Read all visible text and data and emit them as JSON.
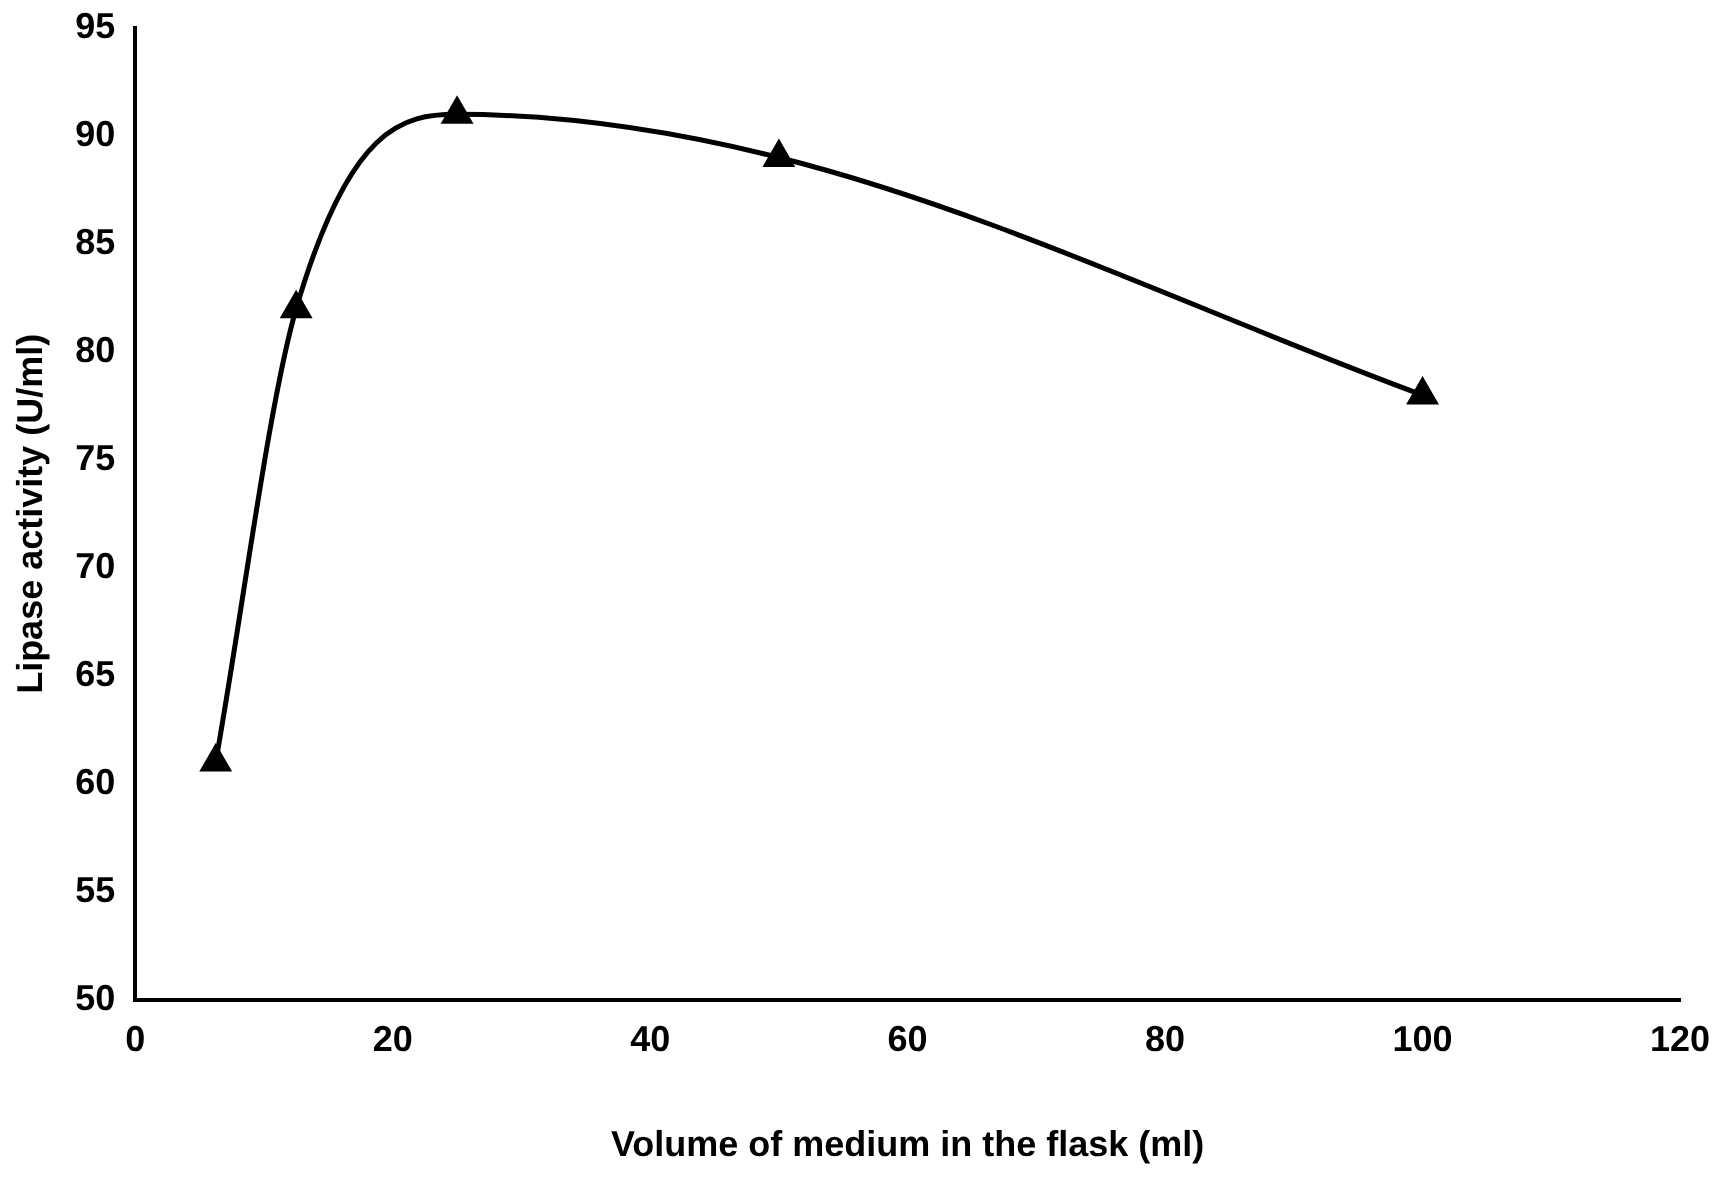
{
  "chart_data": {
    "type": "line",
    "xlabel": "Volume of medium in the flask (ml)",
    "ylabel": "Lipase activity (U/ml)",
    "x": [
      6.25,
      12.5,
      25,
      50,
      100
    ],
    "series": [
      {
        "color": "#000000",
        "values": [
          61,
          82,
          91,
          89,
          78
        ]
      }
    ],
    "xlim": [
      0,
      120
    ],
    "xticks": [
      0,
      20,
      40,
      60,
      80,
      100,
      120
    ],
    "ylim": [
      50,
      95
    ],
    "yticks": [
      50,
      55,
      60,
      65,
      70,
      75,
      80,
      85,
      90,
      95
    ],
    "grid": false,
    "legend": false,
    "marker": "triangle",
    "line_style": "solid"
  }
}
